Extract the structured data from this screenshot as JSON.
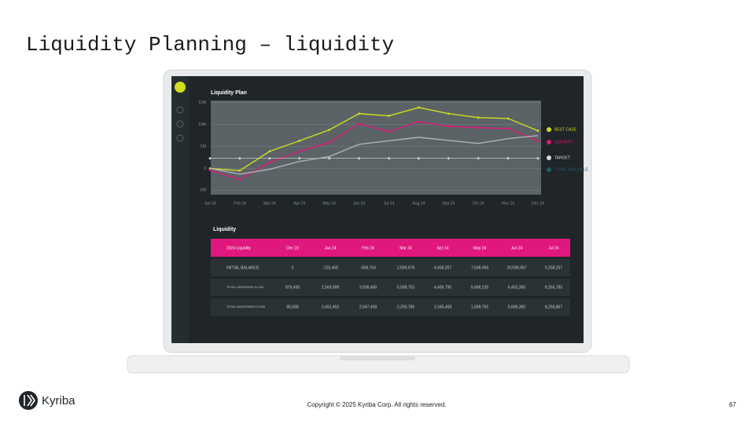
{
  "title": "Liquidity Planning – liquidity",
  "chart_data": {
    "type": "line",
    "title": "Liquidity Plan",
    "categories": [
      "Jan 24",
      "Feb 24",
      "Mar 24",
      "Apr 24",
      "May 24",
      "Jun 24",
      "Jul 24",
      "Aug 24",
      "Sep 24",
      "Oct 24",
      "Nov 24",
      "Dec 24"
    ],
    "series": [
      {
        "name": "BEST CASE",
        "color": "#d2df1c",
        "values": [
          0,
          -0.5,
          3.9,
          6.3,
          8.8,
          12.5,
          12,
          13.9,
          12.5,
          11.6,
          11.4,
          8.6
        ]
      },
      {
        "name": "LIQUIDITY",
        "color": "#e0177c",
        "values": [
          -0.4,
          -2.5,
          1.4,
          3.9,
          5.9,
          10.2,
          8.4,
          10.7,
          9.6,
          9.3,
          9.1,
          6.3
        ]
      },
      {
        "name": "TARGET",
        "color": "#d9dcde",
        "values": [
          2.3,
          2.3,
          2.3,
          2.3,
          2.3,
          2.3,
          2.3,
          2.3,
          2.3,
          2.3,
          2.3,
          2.3
        ]
      },
      {
        "name": "TOTAL AVAILABLE",
        "color": "#aeb4b8",
        "values": [
          0,
          -1.3,
          -0.2,
          1.6,
          2.7,
          5.5,
          6.3,
          7.1,
          6.4,
          5.7,
          6.8,
          7.5
        ]
      }
    ],
    "ylim": [
      -6,
      15.5
    ],
    "yticks": [
      {
        "value": 15,
        "label": "15M"
      },
      {
        "value": 10,
        "label": "10M"
      },
      {
        "value": 5,
        "label": "5M"
      },
      0,
      {
        "value": -5,
        "label": "-5M"
      }
    ],
    "grid": true
  },
  "table": {
    "title": "Liquidity",
    "header": [
      "2024 Liquidity",
      "Dec 23",
      "Jan 24",
      "Feb 24",
      "Mar 24",
      "Apr 24",
      "May 24",
      "Jun 24",
      "Jul 24"
    ],
    "rows": [
      [
        "INITIAL BALANCE",
        "0",
        "-125,458",
        "-568,764",
        "2,569,678",
        "4,458,257",
        "7,598,458",
        "10,596,967",
        "9,258,257"
      ],
      [
        "TOTAL OPERATING FLOW",
        "879,458",
        "2,569,589",
        "3,598,458",
        "5,568,753",
        "4,456,795",
        "5,698,235",
        "6,452,365",
        "8,265,785"
      ],
      [
        "TOTAL INVESTMENT FLOW",
        "85,568",
        "3,452,453",
        "2,667,458",
        "2,259,785",
        "2,345,458",
        "1,589,765",
        "6,896,365",
        "8,256,867"
      ]
    ]
  },
  "footer": {
    "logo": "Kyriba",
    "copyright": "Copyright © 2025 Kyriba Corp. All rights reserved.",
    "page": "67"
  }
}
